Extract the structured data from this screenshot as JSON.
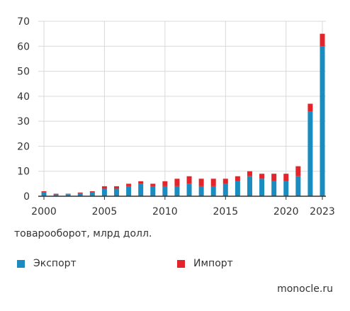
{
  "chart_data": {
    "type": "bar",
    "stacked": true,
    "x": [
      2000,
      2001,
      2002,
      2003,
      2004,
      2005,
      2006,
      2007,
      2008,
      2009,
      2010,
      2011,
      2012,
      2013,
      2014,
      2015,
      2016,
      2017,
      2018,
      2019,
      2020,
      2021,
      2022,
      2023
    ],
    "series": [
      {
        "name": "Экспорт",
        "color": "#1a8cbf",
        "values": [
          1.5,
          0.7,
          0.8,
          1.2,
          1.5,
          3,
          3,
          4,
          5,
          4,
          4,
          4,
          5,
          4,
          4,
          5,
          6,
          8,
          7,
          6,
          6,
          8,
          34,
          60
        ]
      },
      {
        "name": "Импорт",
        "color": "#e3242b",
        "values": [
          0.5,
          0.3,
          0.2,
          0.3,
          0.5,
          1,
          1,
          1,
          1,
          1,
          2,
          3,
          3,
          3,
          3,
          2,
          2,
          2,
          2,
          3,
          3,
          4,
          3,
          5
        ]
      }
    ],
    "ylim": [
      0,
      70
    ],
    "yticks": [
      0,
      10,
      20,
      30,
      40,
      50,
      60,
      70
    ],
    "xtick_labels": [
      "2000",
      "2005",
      "2010",
      "2015",
      "2020",
      "2023"
    ],
    "grid": true,
    "ylabel": "товарооборот, млрд долл.",
    "legend_position": "bottom"
  },
  "caption": "товарооборот, млрд долл.",
  "legend": {
    "export_label": "Экспорт",
    "import_label": "Импорт"
  },
  "colors": {
    "export": "#1a8cbf",
    "import": "#e3242b",
    "grid": "#d9d9d9",
    "axis": "#333333"
  },
  "brand": "monocle.ru"
}
